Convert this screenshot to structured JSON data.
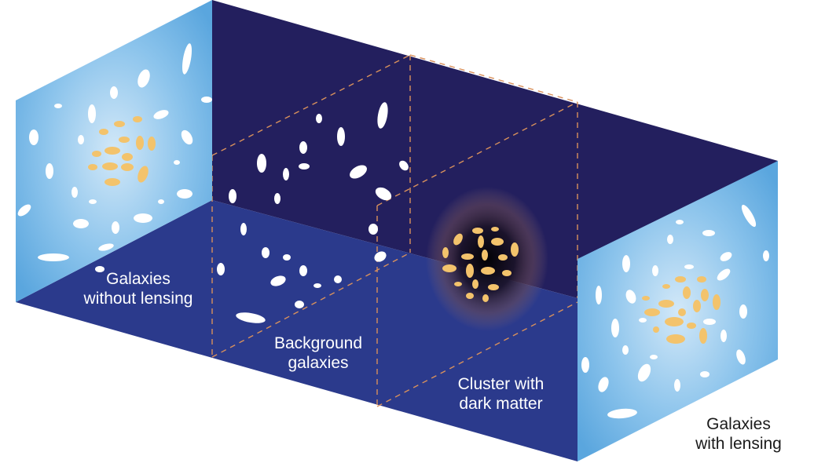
{
  "labels": {
    "without_lensing": "Galaxies\nwithout lensing",
    "background_galaxies": "Background\ngalaxies",
    "cluster": "Cluster with\ndark matter",
    "with_lensing": "Galaxies\nwith lensing"
  },
  "colors": {
    "back_wall": "#231f5e",
    "floor": "#2b3a8c",
    "panel_center": "#cfe6f8",
    "panel_edge": "#5aa6de",
    "galaxy_white": "#ffffff",
    "galaxy_gold": "#f3c36c",
    "dashed_line": "#d9915c"
  }
}
